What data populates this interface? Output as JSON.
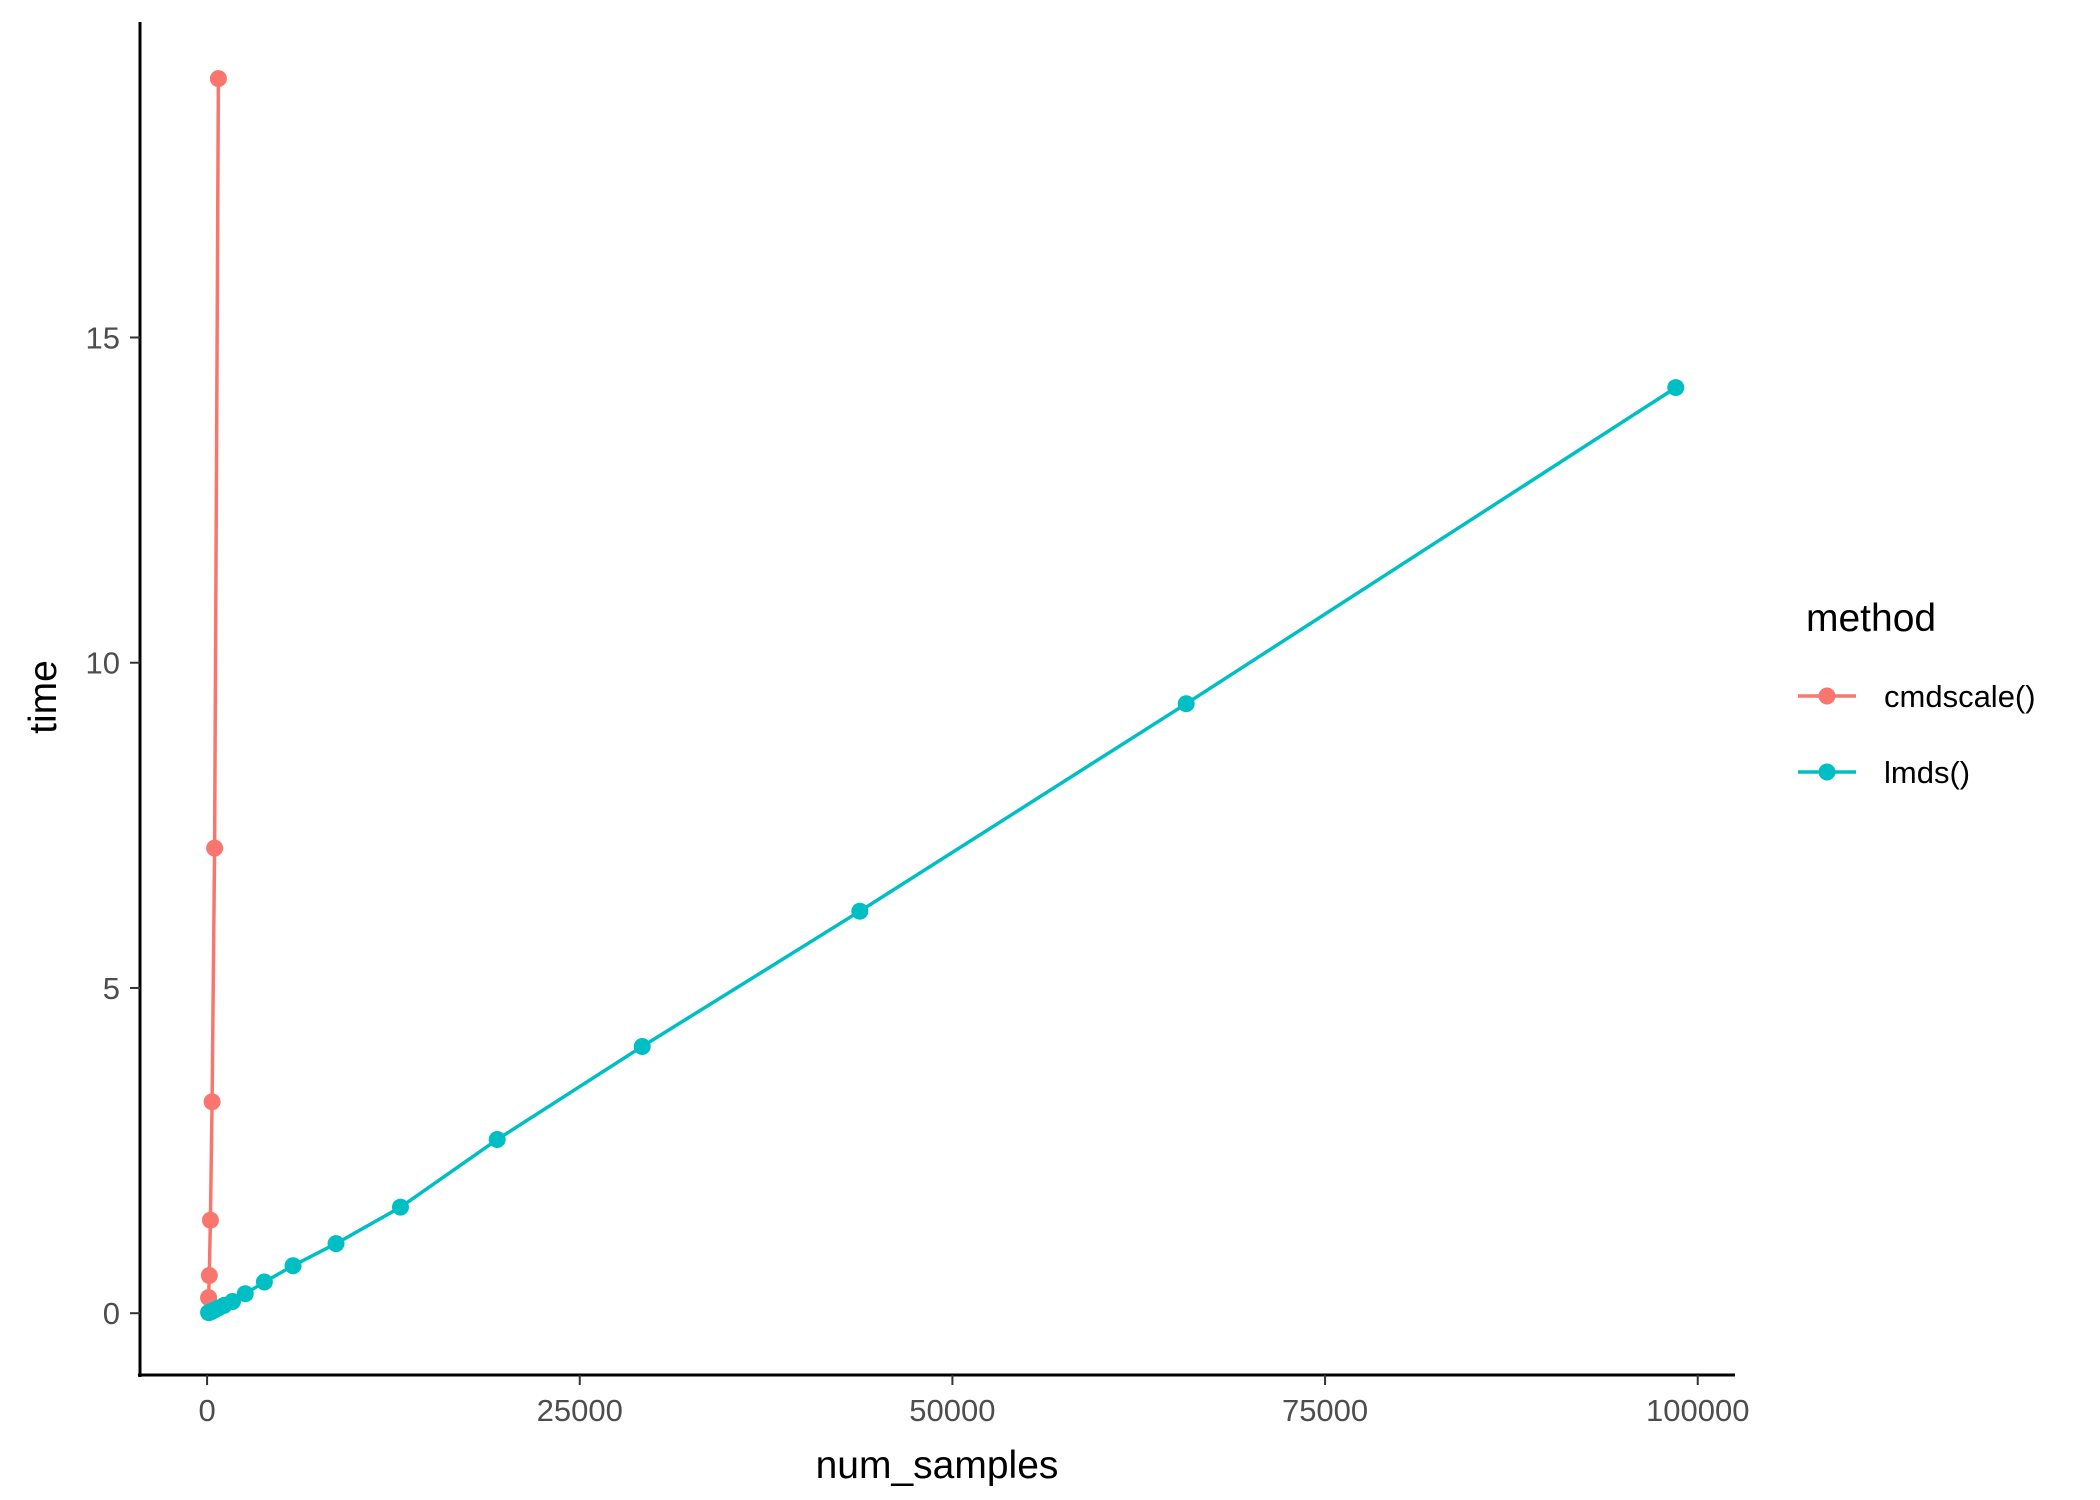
{
  "chart_data": {
    "type": "line",
    "xlabel": "num_samples",
    "ylabel": "time",
    "xlim": [
      -4500,
      102500
    ],
    "ylim": [
      -0.95,
      19.85
    ],
    "xticks": [
      0,
      25000,
      50000,
      75000,
      100000
    ],
    "xtick_labels": [
      "0",
      "25000",
      "50000",
      "75000",
      "100000"
    ],
    "yticks": [
      0,
      5,
      10,
      15
    ],
    "ytick_labels": [
      "0",
      "5",
      "10",
      "15"
    ],
    "grid": false,
    "legend": {
      "title": "method",
      "position": "right"
    },
    "series": [
      {
        "name": "cmdscale()",
        "color": "#F8766D",
        "x": [
          100,
          150,
          225,
          337,
          506,
          759
        ],
        "y": [
          0.24,
          0.58,
          1.43,
          3.25,
          7.15,
          18.98
        ]
      },
      {
        "name": "lmds()",
        "color": "#00BFC4",
        "x": [
          100,
          150,
          225,
          337,
          506,
          759,
          1139,
          1708,
          2562,
          3844,
          5766,
          8649,
          12974,
          19461,
          29192,
          43789,
          65684,
          98526
        ],
        "y": [
          0.01,
          0.01,
          0.02,
          0.03,
          0.05,
          0.08,
          0.12,
          0.18,
          0.3,
          0.48,
          0.73,
          1.07,
          1.63,
          2.67,
          4.1,
          6.18,
          9.37,
          14.23
        ]
      }
    ]
  }
}
